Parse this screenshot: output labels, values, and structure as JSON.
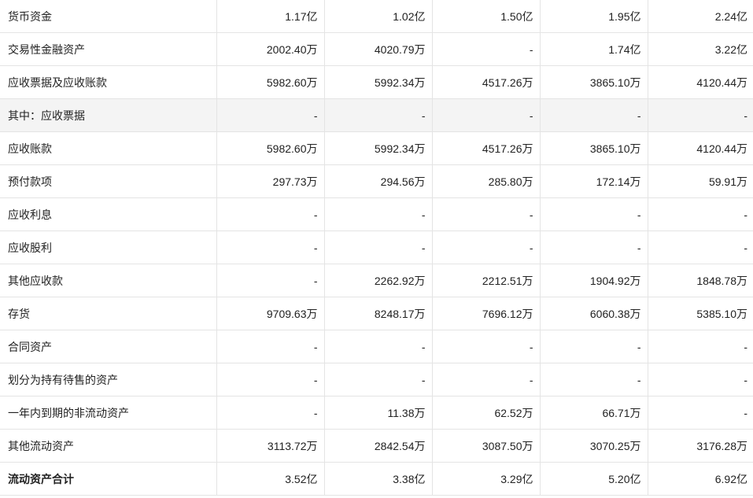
{
  "table": {
    "rows": [
      {
        "label": "货币资金",
        "values": [
          "1.17亿",
          "1.02亿",
          "1.50亿",
          "1.95亿",
          "2.24亿"
        ]
      },
      {
        "label": "交易性金融资产",
        "values": [
          "2002.40万",
          "4020.79万",
          "-",
          "1.74亿",
          "3.22亿"
        ]
      },
      {
        "label": "应收票据及应收账款",
        "values": [
          "5982.60万",
          "5992.34万",
          "4517.26万",
          "3865.10万",
          "4120.44万"
        ]
      },
      {
        "label": "其中：应收票据",
        "values": [
          "-",
          "-",
          "-",
          "-",
          "-"
        ]
      },
      {
        "label": "应收账款",
        "values": [
          "5982.60万",
          "5992.34万",
          "4517.26万",
          "3865.10万",
          "4120.44万"
        ]
      },
      {
        "label": "预付款项",
        "values": [
          "297.73万",
          "294.56万",
          "285.80万",
          "172.14万",
          "59.91万"
        ]
      },
      {
        "label": "应收利息",
        "values": [
          "-",
          "-",
          "-",
          "-",
          "-"
        ]
      },
      {
        "label": "应收股利",
        "values": [
          "-",
          "-",
          "-",
          "-",
          "-"
        ]
      },
      {
        "label": "其他应收款",
        "values": [
          "-",
          "2262.92万",
          "2212.51万",
          "1904.92万",
          "1848.78万"
        ]
      },
      {
        "label": "存货",
        "values": [
          "9709.63万",
          "8248.17万",
          "7696.12万",
          "6060.38万",
          "5385.10万"
        ]
      },
      {
        "label": "合同资产",
        "values": [
          "-",
          "-",
          "-",
          "-",
          "-"
        ]
      },
      {
        "label": "划分为持有待售的资产",
        "values": [
          "-",
          "-",
          "-",
          "-",
          "-"
        ]
      },
      {
        "label": "一年内到期的非流动资产",
        "values": [
          "-",
          "11.38万",
          "62.52万",
          "66.71万",
          "-"
        ]
      },
      {
        "label": "其他流动资产",
        "values": [
          "3113.72万",
          "2842.54万",
          "3087.50万",
          "3070.25万",
          "3176.28万"
        ]
      },
      {
        "label": "流动资产合计",
        "values": [
          "3.52亿",
          "3.38亿",
          "3.29亿",
          "5.20亿",
          "6.92亿"
        ]
      }
    ]
  },
  "colors": {
    "border": "#e4e4e4",
    "shaded_row": "#f4f4f4",
    "text": "#222222"
  }
}
